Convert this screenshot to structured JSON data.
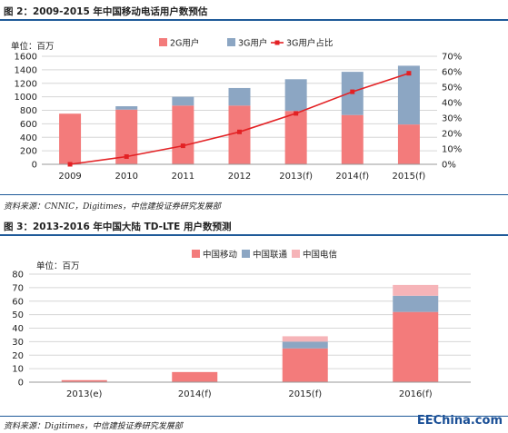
{
  "chart1": {
    "title": "图 2：2009-2015 年中国移动电话用户数预估",
    "unit_label": "单位：百万",
    "source": "资料来源：CNNIC，Digitimes，中信建投证券研究发展部"
  },
  "chart2": {
    "title": "图 3：2013-2016 年中国大陆 TD-LTE 用户数预测",
    "unit_label": "单位：百万",
    "source": "资料来源：Digitimes，中信建投证券研究发展部"
  },
  "watermark": "EEChina.com",
  "colors": {
    "bar_2g": "#f37b7b",
    "bar_3g": "#8ca6c3",
    "line_3g_share": "#e32124",
    "mobile": "#f37b7b",
    "unicom": "#8ca6c3",
    "telecom": "#f6b4b8",
    "rule": "#1f5a99"
  },
  "chart_data": [
    {
      "type": "bar",
      "stacked": true,
      "categories": [
        "2009",
        "2010",
        "2011",
        "2012",
        "2013(f)",
        "2014(f)",
        "2015(f)"
      ],
      "series": [
        {
          "name": "2G用户",
          "values": [
            750,
            810,
            870,
            870,
            790,
            730,
            590
          ]
        },
        {
          "name": "3G用户",
          "values": [
            0,
            50,
            130,
            260,
            470,
            640,
            870
          ]
        }
      ],
      "line_series": [
        {
          "name": "3G用户占比",
          "axis": "right",
          "values": [
            0.0,
            0.05,
            0.12,
            0.21,
            0.33,
            0.47,
            0.59
          ]
        }
      ],
      "ylim": [
        0,
        1600
      ],
      "yticks": [
        0,
        200,
        400,
        600,
        800,
        1000,
        1200,
        1400,
        1600
      ],
      "y2lim": [
        0,
        0.7
      ],
      "y2ticks": [
        "0%",
        "10%",
        "20%",
        "30%",
        "40%",
        "50%",
        "60%",
        "70%"
      ],
      "legend": "top",
      "grid": true
    },
    {
      "type": "bar",
      "stacked": true,
      "categories": [
        "2013(e)",
        "2014(f)",
        "2015(f)",
        "2016(f)"
      ],
      "series": [
        {
          "name": "中国移动",
          "values": [
            1.5,
            7.5,
            25,
            52
          ]
        },
        {
          "name": "中国联通",
          "values": [
            0,
            0,
            5,
            12
          ]
        },
        {
          "name": "中国电信",
          "values": [
            0,
            0,
            4,
            8
          ]
        }
      ],
      "ylim": [
        0,
        80
      ],
      "yticks": [
        0,
        10,
        20,
        30,
        40,
        50,
        60,
        70,
        80
      ],
      "legend": "top",
      "grid": true
    }
  ]
}
